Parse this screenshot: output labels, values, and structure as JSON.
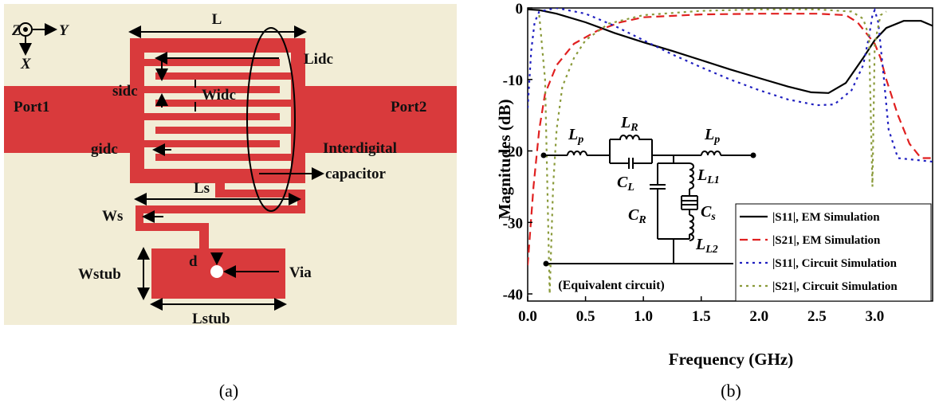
{
  "diagram": {
    "axes": {
      "z": "Z",
      "y": "Y",
      "x": "X"
    },
    "labels": {
      "L": "L",
      "Lidc": "Lidc",
      "sidc": "sidc",
      "Widc": "Widc",
      "port1": "Port1",
      "port2": "Port2",
      "gidc": "gidc",
      "interdigital": "Interdigital",
      "capacitor": "capacitor",
      "Ls": "Ls",
      "Ws": "Ws",
      "Wstub": "Wstub",
      "d": "d",
      "via": "Via",
      "Lstub": "Lstub"
    }
  },
  "captions": {
    "a": "(a)",
    "b": "(b)"
  },
  "circuit": {
    "note": "(Equivalent circuit)",
    "elements": [
      {
        "symbol": "L",
        "sub": "p"
      },
      {
        "symbol": "L",
        "sub": "R"
      },
      {
        "symbol": "C",
        "sub": "L"
      },
      {
        "symbol": "L",
        "sub": "p"
      },
      {
        "symbol": "L",
        "sub": "L1"
      },
      {
        "symbol": "C",
        "sub": "R"
      },
      {
        "symbol": "C",
        "sub": "s"
      },
      {
        "symbol": "L",
        "sub": "L2"
      }
    ]
  },
  "chart_data": {
    "type": "line",
    "x_label": "Frequency (GHz)",
    "y_label": "Magnitudes (dB)",
    "xlim": [
      0,
      3.5
    ],
    "ylim": [
      -41,
      0
    ],
    "xticks": [
      {
        "value": 0,
        "label": "0.0"
      },
      0.5,
      {
        "value": 1,
        "label": "1.0"
      },
      1.5,
      {
        "value": 2,
        "label": "2.0"
      },
      2.5,
      {
        "value": 3,
        "label": "3.0"
      }
    ],
    "yticks": [
      0,
      -10,
      -20,
      -30,
      -40
    ],
    "grid": false,
    "legend": "lower right",
    "series": [
      {
        "name": "|S11|, EM Simulation",
        "color": "#000000",
        "line_style": "solid",
        "x": [
          0,
          0.1,
          0.25,
          0.5,
          0.75,
          1.0,
          1.25,
          1.5,
          1.75,
          2.0,
          2.25,
          2.45,
          2.6,
          2.75,
          2.9,
          3.0,
          3.1,
          3.25,
          3.4,
          3.5
        ],
        "values": [
          -0.2,
          -0.3,
          -0.8,
          -2,
          -3.5,
          -4.8,
          -6,
          -7.3,
          -8.6,
          -9.8,
          -11,
          -11.8,
          -11.9,
          -10.5,
          -7,
          -4.5,
          -2.8,
          -1.8,
          -1.8,
          -2.5
        ]
      },
      {
        "name": "|S21|, EM Simulation",
        "color": "#e02020",
        "line_style": "dashed",
        "x": [
          0,
          0.05,
          0.1,
          0.15,
          0.25,
          0.4,
          0.6,
          0.8,
          1.0,
          1.5,
          2.0,
          2.5,
          2.75,
          2.85,
          2.95,
          3.0,
          3.05,
          3.1,
          3.2,
          3.3,
          3.4,
          3.5
        ],
        "values": [
          -36,
          -25,
          -17,
          -12,
          -8,
          -5,
          -3.2,
          -2,
          -1.3,
          -0.9,
          -0.8,
          -0.8,
          -1,
          -2,
          -4,
          -5,
          -7,
          -10,
          -15,
          -19,
          -21,
          -21
        ]
      },
      {
        "name": "|S11|, Circuit Simulation",
        "color": "#2020c0",
        "line_style": "dotted",
        "x": [
          0,
          0.03,
          0.06,
          0.1,
          0.25,
          0.5,
          0.75,
          1.0,
          1.25,
          1.5,
          1.75,
          2.0,
          2.25,
          2.5,
          2.65,
          2.8,
          2.9,
          2.95,
          2.98,
          3.0,
          3.03,
          3.08,
          3.12,
          3.2,
          3.5
        ],
        "values": [
          -14,
          -6,
          -2,
          -0.5,
          0,
          -0.8,
          -2.5,
          -4.5,
          -6.5,
          -8.3,
          -10,
          -11.5,
          -12.8,
          -13.6,
          -13.5,
          -11.5,
          -8,
          -4,
          -1,
          -0.3,
          -2,
          -10,
          -17,
          -21,
          -21.5
        ]
      },
      {
        "name": "|S21|, Circuit Simulation",
        "color": "#8a9a3a",
        "line_style": "dotted",
        "x": [
          0.1,
          0.15,
          0.19,
          0.22,
          0.25,
          0.3,
          0.4,
          0.5,
          0.7,
          1.0,
          1.5,
          2.0,
          2.5,
          2.8,
          2.9,
          2.95,
          2.98,
          3.0,
          3.05,
          3.1
        ],
        "values": [
          -1,
          -10,
          -40,
          -25,
          -17,
          -11,
          -7,
          -4.5,
          -2.2,
          -1,
          -0.4,
          -0.2,
          -0.2,
          -0.5,
          -1.5,
          -4,
          -25,
          -5,
          -1,
          -0.5
        ]
      }
    ]
  }
}
